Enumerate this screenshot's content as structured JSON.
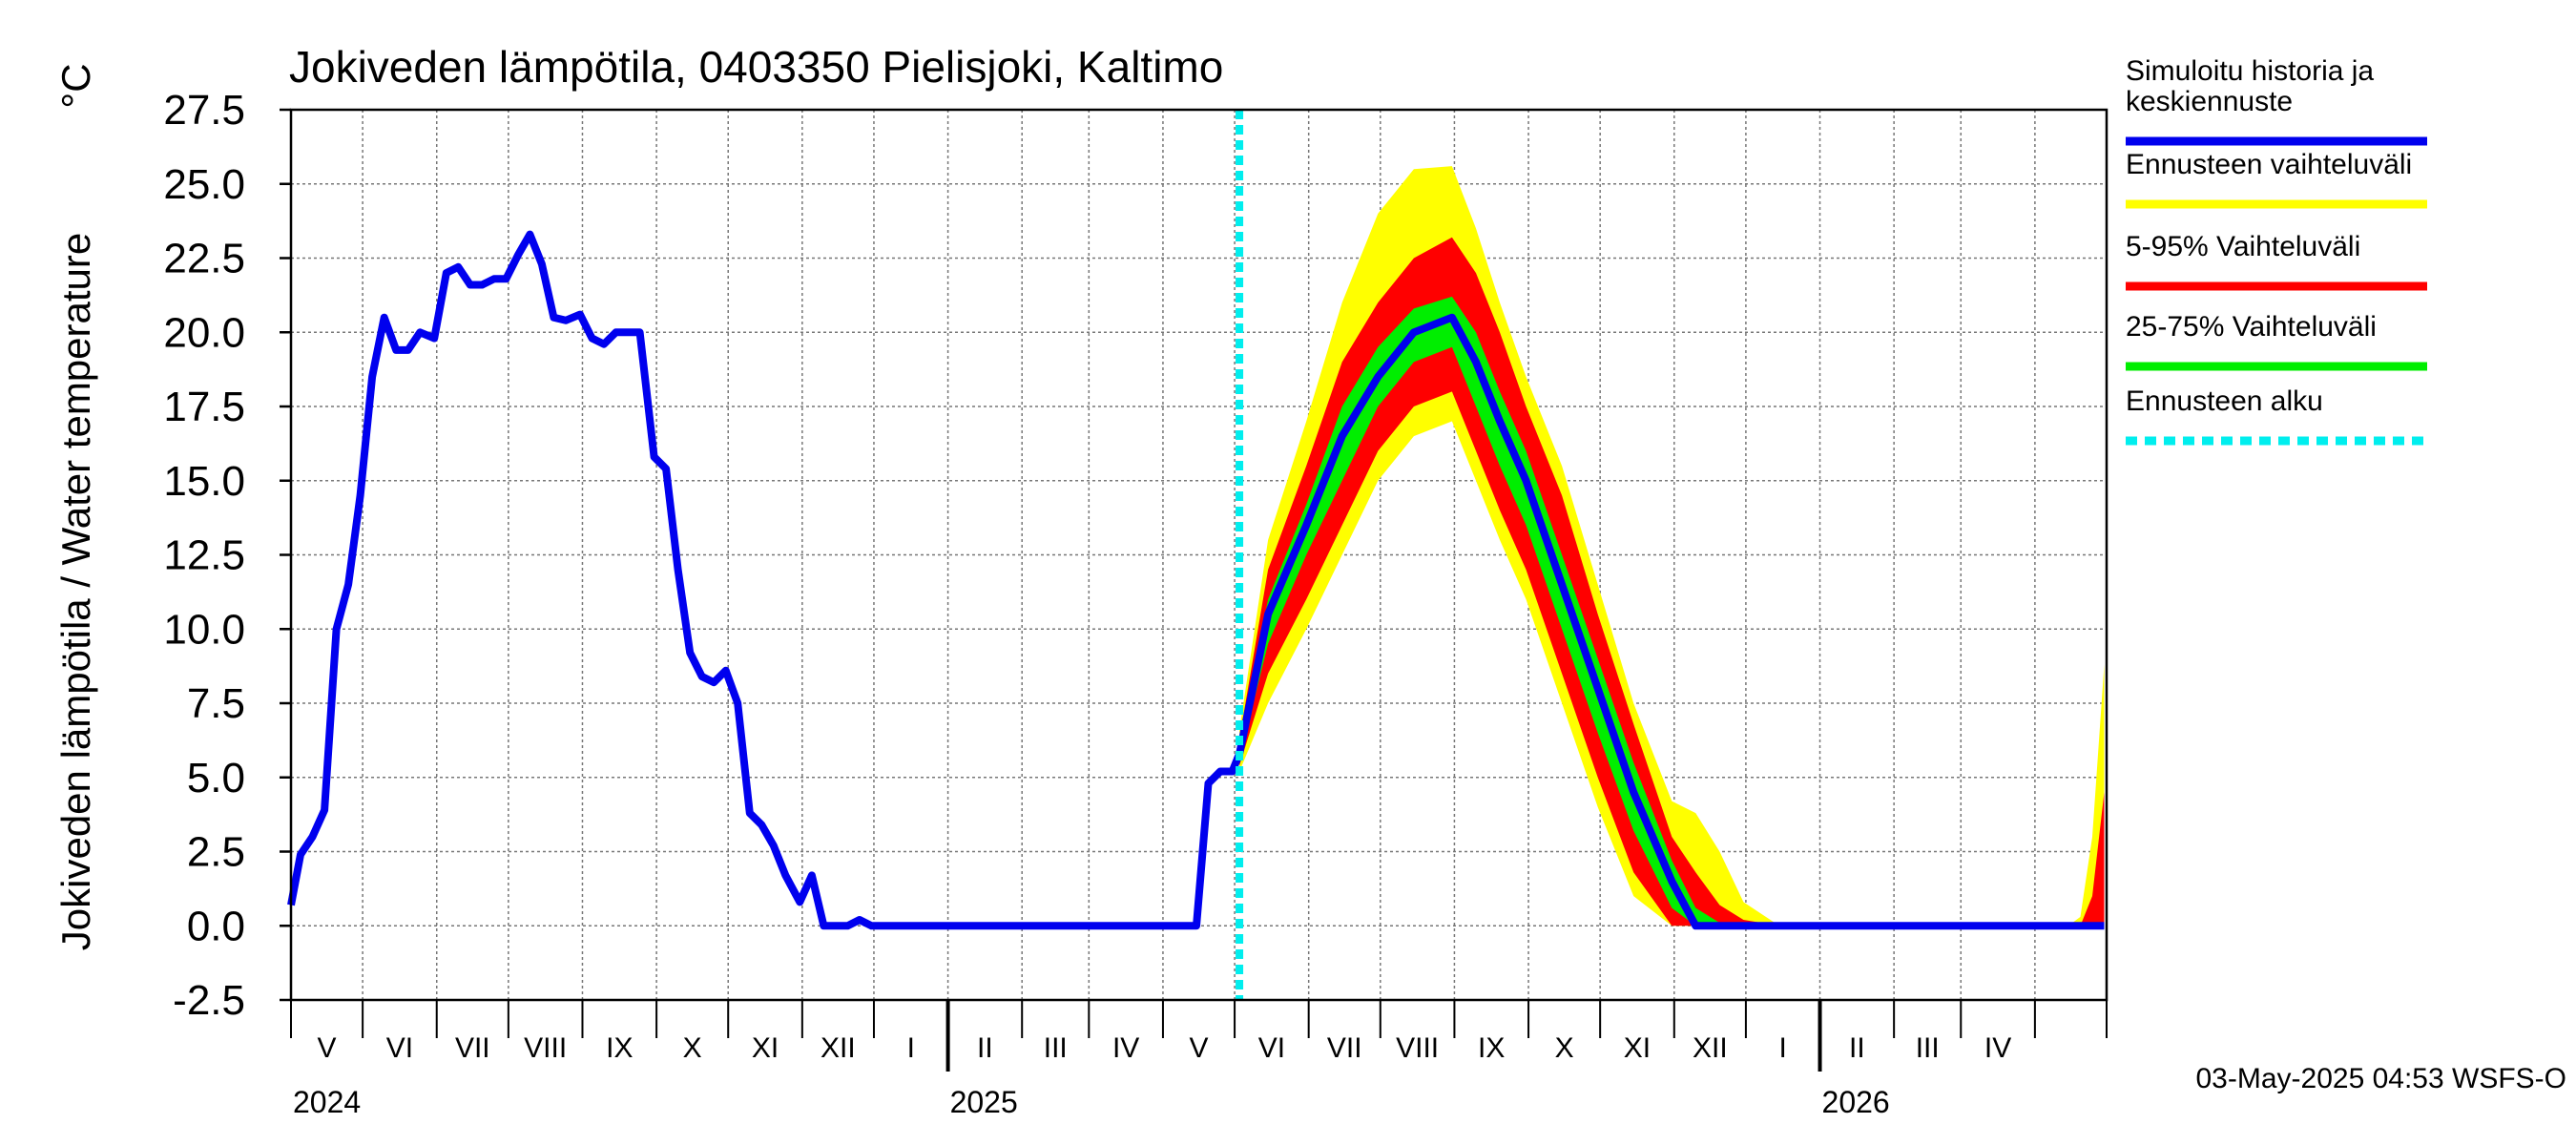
{
  "chart_data": {
    "type": "area",
    "title": "Jokiveden lämpötila, 0403350 Pielisjoki, Kaltimo",
    "ylabel": "Jokiveden lämpötila / Water temperature",
    "yunit": "°C",
    "ylim": [
      -2.5,
      27.5
    ],
    "yticks": [
      "27.5",
      "25.0",
      "22.5",
      "20.0",
      "17.5",
      "15.0",
      "12.5",
      "10.0",
      "7.5",
      "5.0",
      "2.5",
      "0.0",
      "-2.5"
    ],
    "x_range": [
      "2024-04-01",
      "2026-05-01"
    ],
    "month_labels": [
      "V",
      "VI",
      "VII",
      "VIII",
      "IX",
      "X",
      "XI",
      "XII",
      "I",
      "II",
      "III",
      "IV",
      "V",
      "VI",
      "VII",
      "VIII",
      "IX",
      "X",
      "XI",
      "XII",
      "I",
      "II",
      "III",
      "IV"
    ],
    "year_labels": [
      "2024",
      "2025",
      "2026"
    ],
    "forecast_start": "2025-05-03",
    "grid": true,
    "legend_position": "right",
    "colors": {
      "history": "#0000ee",
      "range_full": "#ffff00",
      "range_5_95": "#ff0000",
      "range_25_75": "#00ee00",
      "forecast_start": "#00eeee"
    },
    "legend": [
      {
        "key": "history",
        "lines": [
          "Simuloitu historia ja",
          "keskiennuste"
        ]
      },
      {
        "key": "range_full",
        "lines": [
          "Ennusteen vaihteluväli"
        ]
      },
      {
        "key": "range_5_95",
        "lines": [
          "5-95% Vaihteluväli"
        ]
      },
      {
        "key": "range_25_75",
        "lines": [
          "25-75% Vaihteluväli"
        ]
      },
      {
        "key": "forecast_start",
        "lines": [
          "Ennusteen alku"
        ]
      }
    ],
    "history": {
      "name": "Simuloitu historia ja keskiennuste",
      "x": [
        "2024-04-01",
        "2024-04-05",
        "2024-04-10",
        "2024-04-15",
        "2024-04-20",
        "2024-04-25",
        "2024-04-30",
        "2024-05-05",
        "2024-05-10",
        "2024-05-15",
        "2024-05-20",
        "2024-05-25",
        "2024-05-31",
        "2024-06-05",
        "2024-06-10",
        "2024-06-15",
        "2024-06-20",
        "2024-06-25",
        "2024-06-30",
        "2024-07-05",
        "2024-07-10",
        "2024-07-15",
        "2024-07-20",
        "2024-07-25",
        "2024-07-31",
        "2024-08-05",
        "2024-08-10",
        "2024-08-15",
        "2024-08-20",
        "2024-08-25",
        "2024-08-31",
        "2024-09-05",
        "2024-09-10",
        "2024-09-15",
        "2024-09-20",
        "2024-09-25",
        "2024-09-30",
        "2024-10-05",
        "2024-10-10",
        "2024-10-15",
        "2024-10-20",
        "2024-10-25",
        "2024-10-31",
        "2024-11-05",
        "2024-11-10",
        "2024-11-15",
        "2024-11-20",
        "2024-11-25",
        "2024-11-30",
        "2024-12-05",
        "2024-12-10",
        "2024-12-15",
        "2024-12-20",
        "2024-12-25",
        "2024-12-31",
        "2025-01-31",
        "2025-02-28",
        "2025-03-31",
        "2025-04-15",
        "2025-04-20",
        "2025-04-25",
        "2025-04-30",
        "2025-05-03"
      ],
      "y": [
        0.7,
        2.4,
        3.0,
        3.9,
        10.0,
        11.5,
        14.5,
        18.5,
        20.5,
        19.4,
        19.4,
        20.0,
        19.8,
        22.0,
        22.2,
        21.6,
        21.6,
        21.8,
        21.8,
        22.6,
        23.3,
        22.3,
        20.5,
        20.4,
        20.6,
        19.8,
        19.6,
        20.0,
        20.0,
        20.0,
        15.8,
        15.4,
        12.0,
        9.2,
        8.4,
        8.2,
        8.6,
        7.5,
        3.8,
        3.4,
        2.7,
        1.7,
        0.8,
        1.7,
        0.0,
        0.0,
        0.0,
        0.2,
        0.0,
        0.0,
        0.0,
        0.0,
        0.0,
        0.0,
        0.0,
        0.0,
        0.0,
        0.0,
        0.0,
        4.8,
        5.2,
        5.2,
        5.8
      ]
    },
    "forecast": {
      "x": [
        "2025-05-03",
        "2025-05-15",
        "2025-05-31",
        "2025-06-15",
        "2025-06-30",
        "2025-07-15",
        "2025-07-31",
        "2025-08-10",
        "2025-08-20",
        "2025-08-31",
        "2025-09-15",
        "2025-09-30",
        "2025-10-15",
        "2025-10-31",
        "2025-11-10",
        "2025-11-20",
        "2025-11-30",
        "2025-12-15",
        "2025-12-31",
        "2026-01-31",
        "2026-02-28",
        "2026-03-31",
        "2026-04-15",
        "2026-04-20",
        "2026-04-25",
        "2026-04-30"
      ],
      "median": [
        5.8,
        10.5,
        13.5,
        16.5,
        18.5,
        20.0,
        20.5,
        19.0,
        17.0,
        15.0,
        11.5,
        8.0,
        4.5,
        1.5,
        0.0,
        0.0,
        0.0,
        0.0,
        0.0,
        0.0,
        0.0,
        0.0,
        0.0,
        0.0,
        0.0,
        0.0
      ],
      "p25": [
        5.6,
        9.5,
        12.5,
        15.0,
        17.5,
        19.0,
        19.5,
        17.5,
        15.5,
        13.5,
        10.0,
        6.5,
        3.2,
        0.6,
        0.0,
        0.0,
        0.0,
        0.0,
        0.0,
        0.0,
        0.0,
        0.0,
        0.0,
        0.0,
        0.0,
        0.0
      ],
      "p75": [
        6.0,
        11.0,
        14.2,
        17.5,
        19.5,
        20.8,
        21.2,
        20.0,
        18.0,
        16.0,
        12.5,
        9.0,
        5.5,
        2.2,
        0.6,
        0.1,
        0.0,
        0.0,
        0.0,
        0.0,
        0.0,
        0.0,
        0.0,
        0.0,
        0.0,
        0.0
      ],
      "p5": [
        5.4,
        8.5,
        11.0,
        13.5,
        16.0,
        17.5,
        18.0,
        16.0,
        14.0,
        12.0,
        8.5,
        5.0,
        1.8,
        0.0,
        0.0,
        0.0,
        0.0,
        0.0,
        0.0,
        0.0,
        0.0,
        0.0,
        0.0,
        0.0,
        0.0,
        0.0
      ],
      "p95": [
        6.3,
        12.0,
        15.5,
        19.0,
        21.0,
        22.5,
        23.2,
        22.0,
        20.0,
        17.5,
        14.5,
        10.5,
        6.8,
        3.0,
        1.8,
        0.7,
        0.2,
        0.0,
        0.0,
        0.0,
        0.0,
        0.0,
        0.0,
        0.0,
        1.0,
        4.5
      ],
      "min": [
        5.2,
        7.5,
        10.0,
        12.5,
        15.0,
        16.5,
        17.0,
        15.0,
        13.0,
        11.0,
        7.5,
        4.0,
        1.0,
        0.0,
        0.0,
        0.0,
        0.0,
        0.0,
        0.0,
        0.0,
        0.0,
        0.0,
        0.0,
        0.0,
        0.0,
        0.0
      ],
      "max": [
        6.6,
        13.0,
        17.0,
        21.0,
        24.0,
        25.5,
        25.6,
        23.5,
        21.0,
        18.5,
        15.5,
        11.5,
        7.5,
        4.2,
        3.8,
        2.5,
        0.8,
        0.0,
        0.0,
        0.0,
        0.0,
        0.0,
        0.0,
        0.3,
        3.0,
        8.8
      ]
    }
  },
  "footer": "03-May-2025 04:53 WSFS-O"
}
